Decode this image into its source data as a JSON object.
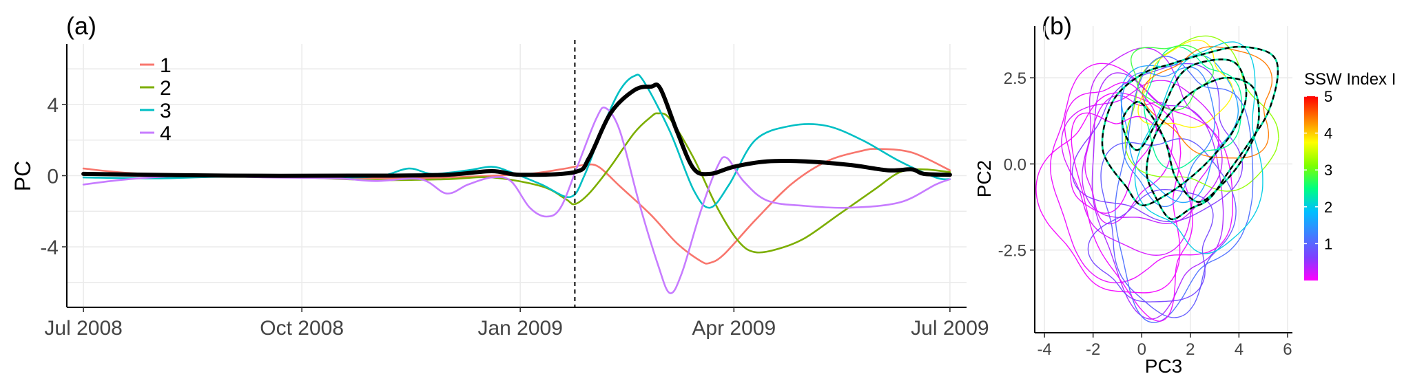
{
  "colors": {
    "series_1": "#F8766D",
    "series_2": "#7CAE00",
    "series_3": "#00BFC4",
    "series_4": "#C77CFF",
    "mean": "#000000",
    "event_marker": "#000000"
  },
  "chart_data": [
    {
      "type": "line",
      "panel_label": "(a)",
      "title": "",
      "xlabel": "",
      "ylabel": "PC",
      "x_type": "date",
      "xlim": [
        "2008-06-24",
        "2009-07-08"
      ],
      "ylim": [
        -7.4,
        7.4
      ],
      "xticks": [
        {
          "date": "2008-07-01",
          "label": "Jul 2008"
        },
        {
          "date": "2008-10-01",
          "label": "Oct 2008"
        },
        {
          "date": "2009-01-01",
          "label": "Jan 2009"
        },
        {
          "date": "2009-04-01",
          "label": "Apr 2009"
        },
        {
          "date": "2009-07-01",
          "label": "Jul 2009"
        }
      ],
      "yticks": [
        {
          "value": -4,
          "label": "-4"
        },
        {
          "value": 0,
          "label": "0"
        },
        {
          "value": 4,
          "label": "4"
        }
      ],
      "grid": true,
      "legend_position": "top-left",
      "event_line": {
        "date": "2009-01-24",
        "style": "dashed"
      },
      "series": [
        {
          "name": "1",
          "color_key": "series_1",
          "points": [
            [
              "2008-07-01",
              0.4
            ],
            [
              "2008-07-20",
              0.15
            ],
            [
              "2008-08-15",
              0.0
            ],
            [
              "2008-09-15",
              -0.05
            ],
            [
              "2008-10-15",
              -0.1
            ],
            [
              "2008-11-10",
              -0.15
            ],
            [
              "2008-12-01",
              -0.1
            ],
            [
              "2008-12-20",
              0.0
            ],
            [
              "2009-01-05",
              0.1
            ],
            [
              "2009-01-20",
              0.4
            ],
            [
              "2009-01-28",
              0.6
            ],
            [
              "2009-02-03",
              0.5
            ],
            [
              "2009-02-12",
              -0.6
            ],
            [
              "2009-02-25",
              -2.2
            ],
            [
              "2009-03-08",
              -3.8
            ],
            [
              "2009-03-18",
              -4.8
            ],
            [
              "2009-03-22",
              -4.9
            ],
            [
              "2009-03-28",
              -4.4
            ],
            [
              "2009-04-10",
              -2.5
            ],
            [
              "2009-04-25",
              -0.5
            ],
            [
              "2009-05-10",
              0.8
            ],
            [
              "2009-05-25",
              1.4
            ],
            [
              "2009-06-01",
              1.5
            ],
            [
              "2009-06-15",
              1.3
            ],
            [
              "2009-07-01",
              0.3
            ]
          ]
        },
        {
          "name": "2",
          "color_key": "series_2",
          "points": [
            [
              "2008-07-01",
              0.1
            ],
            [
              "2008-08-01",
              0.0
            ],
            [
              "2008-09-01",
              -0.05
            ],
            [
              "2008-10-01",
              -0.1
            ],
            [
              "2008-11-01",
              -0.25
            ],
            [
              "2008-12-01",
              -0.2
            ],
            [
              "2008-12-20",
              -0.1
            ],
            [
              "2009-01-10",
              -0.6
            ],
            [
              "2009-01-20",
              -1.3
            ],
            [
              "2009-01-24",
              -1.6
            ],
            [
              "2009-01-30",
              -1.0
            ],
            [
              "2009-02-08",
              0.5
            ],
            [
              "2009-02-18",
              2.4
            ],
            [
              "2009-02-25",
              3.3
            ],
            [
              "2009-02-28",
              3.5
            ],
            [
              "2009-03-05",
              3.2
            ],
            [
              "2009-03-15",
              1.0
            ],
            [
              "2009-03-25",
              -1.8
            ],
            [
              "2009-04-03",
              -3.7
            ],
            [
              "2009-04-10",
              -4.3
            ],
            [
              "2009-04-20",
              -4.1
            ],
            [
              "2009-05-01",
              -3.5
            ],
            [
              "2009-05-15",
              -2.2
            ],
            [
              "2009-05-30",
              -0.8
            ],
            [
              "2009-06-10",
              0.2
            ],
            [
              "2009-06-20",
              0.35
            ],
            [
              "2009-07-01",
              0.2
            ]
          ]
        },
        {
          "name": "3",
          "color_key": "series_3",
          "points": [
            [
              "2008-07-01",
              -0.1
            ],
            [
              "2008-08-01",
              -0.15
            ],
            [
              "2008-09-01",
              -0.05
            ],
            [
              "2008-10-01",
              -0.1
            ],
            [
              "2008-11-01",
              -0.05
            ],
            [
              "2008-11-15",
              0.4
            ],
            [
              "2008-11-25",
              0.1
            ],
            [
              "2008-12-10",
              0.3
            ],
            [
              "2008-12-20",
              0.5
            ],
            [
              "2008-12-28",
              0.2
            ],
            [
              "2009-01-10",
              -0.5
            ],
            [
              "2009-01-22",
              -1.2
            ],
            [
              "2009-01-28",
              0.0
            ],
            [
              "2009-02-05",
              2.8
            ],
            [
              "2009-02-12",
              4.8
            ],
            [
              "2009-02-18",
              5.6
            ],
            [
              "2009-02-22",
              5.3
            ],
            [
              "2009-03-05",
              2.5
            ],
            [
              "2009-03-15",
              -0.8
            ],
            [
              "2009-03-22",
              -1.8
            ],
            [
              "2009-03-30",
              -0.5
            ],
            [
              "2009-04-10",
              2.0
            ],
            [
              "2009-04-25",
              2.8
            ],
            [
              "2009-05-10",
              2.8
            ],
            [
              "2009-05-25",
              2.0
            ],
            [
              "2009-06-10",
              0.8
            ],
            [
              "2009-06-25",
              -0.1
            ],
            [
              "2009-07-01",
              -0.2
            ]
          ]
        },
        {
          "name": "4",
          "color_key": "series_4",
          "points": [
            [
              "2008-07-01",
              -0.5
            ],
            [
              "2008-07-20",
              -0.2
            ],
            [
              "2008-08-15",
              0.0
            ],
            [
              "2008-09-15",
              -0.1
            ],
            [
              "2008-10-15",
              -0.15
            ],
            [
              "2008-11-01",
              -0.3
            ],
            [
              "2008-11-20",
              -0.2
            ],
            [
              "2008-12-01",
              -1.0
            ],
            [
              "2008-12-10",
              -0.5
            ],
            [
              "2008-12-20",
              -0.1
            ],
            [
              "2008-12-28",
              -0.3
            ],
            [
              "2009-01-05",
              -1.8
            ],
            [
              "2009-01-12",
              -2.3
            ],
            [
              "2009-01-18",
              -1.8
            ],
            [
              "2009-01-25",
              0.5
            ],
            [
              "2009-02-02",
              3.2
            ],
            [
              "2009-02-06",
              3.8
            ],
            [
              "2009-02-12",
              2.5
            ],
            [
              "2009-02-20",
              -1.5
            ],
            [
              "2009-02-28",
              -5.0
            ],
            [
              "2009-03-05",
              -6.6
            ],
            [
              "2009-03-10",
              -5.5
            ],
            [
              "2009-03-18",
              -2.0
            ],
            [
              "2009-03-25",
              0.5
            ],
            [
              "2009-03-29",
              1.0
            ],
            [
              "2009-04-05",
              -0.3
            ],
            [
              "2009-04-15",
              -1.4
            ],
            [
              "2009-05-01",
              -1.7
            ],
            [
              "2009-05-20",
              -1.8
            ],
            [
              "2009-06-10",
              -1.5
            ],
            [
              "2009-06-25",
              -0.5
            ],
            [
              "2009-07-01",
              -0.2
            ]
          ]
        },
        {
          "name": "",
          "color_key": "mean",
          "line_weight": "bold",
          "points": [
            [
              "2008-07-01",
              0.1
            ],
            [
              "2008-09-01",
              0.0
            ],
            [
              "2008-11-01",
              0.0
            ],
            [
              "2008-12-01",
              0.05
            ],
            [
              "2008-12-20",
              0.25
            ],
            [
              "2009-01-01",
              0.05
            ],
            [
              "2009-01-24",
              0.2
            ],
            [
              "2009-01-30",
              1.0
            ],
            [
              "2009-02-08",
              3.5
            ],
            [
              "2009-02-18",
              4.8
            ],
            [
              "2009-02-25",
              5.0
            ],
            [
              "2009-03-01",
              4.9
            ],
            [
              "2009-03-08",
              2.5
            ],
            [
              "2009-03-15",
              0.4
            ],
            [
              "2009-03-22",
              0.1
            ],
            [
              "2009-04-01",
              0.5
            ],
            [
              "2009-04-15",
              0.8
            ],
            [
              "2009-05-01",
              0.8
            ],
            [
              "2009-05-20",
              0.6
            ],
            [
              "2009-06-05",
              0.3
            ],
            [
              "2009-06-15",
              0.35
            ],
            [
              "2009-06-20",
              0.1
            ],
            [
              "2009-07-01",
              0.05
            ]
          ]
        }
      ]
    },
    {
      "type": "line",
      "subtype": "phase-trajectory",
      "panel_label": "(b)",
      "title": "",
      "xlabel": "PC3",
      "ylabel": "PC2",
      "xlim": [
        -4.4,
        6.2
      ],
      "ylim": [
        -4.9,
        4.0
      ],
      "xticks": [
        -4,
        -2,
        0,
        2,
        4,
        6
      ],
      "yticks": [
        {
          "value": -2.5,
          "label": "-2.5"
        },
        {
          "value": 0.0,
          "label": "0.0"
        },
        {
          "value": 2.5,
          "label": "2.5"
        }
      ],
      "grid": true,
      "highlighted_trajectory_style": "black-dashed",
      "colorbar": {
        "title": "SSW Index I",
        "position": "right",
        "min": 0,
        "max": 5,
        "ticks": [
          1,
          2,
          3,
          4,
          5
        ],
        "gradient": [
          "#FF00FF",
          "#7F3FFF",
          "#3F7FFF",
          "#00BFFF",
          "#00FF80",
          "#80FF00",
          "#FFFF00",
          "#FF8000",
          "#FF0000"
        ]
      },
      "loops": [
        {
          "center": [
            0.0,
            0.0
          ],
          "rx": 3.0,
          "ry": 2.4,
          "rot": 10,
          "intensity": 0.2
        },
        {
          "center": [
            -0.2,
            -0.4
          ],
          "rx": 3.8,
          "ry": 2.8,
          "rot": -15,
          "intensity": 0.1
        },
        {
          "center": [
            0.5,
            -0.8
          ],
          "rx": 2.6,
          "ry": 3.3,
          "rot": 20,
          "intensity": 0.4
        },
        {
          "center": [
            -0.6,
            0.3
          ],
          "rx": 2.0,
          "ry": 1.5,
          "rot": 40,
          "intensity": 0.15
        },
        {
          "center": [
            0.8,
            0.5
          ],
          "rx": 3.2,
          "ry": 2.2,
          "rot": 5,
          "intensity": 0.6
        },
        {
          "center": [
            1.0,
            -1.6
          ],
          "rx": 2.6,
          "ry": 2.5,
          "rot": -30,
          "intensity": 0.9
        },
        {
          "center": [
            -1.0,
            -0.9
          ],
          "rx": 2.8,
          "ry": 2.9,
          "rot": 25,
          "intensity": 0.05
        },
        {
          "center": [
            1.5,
            1.2
          ],
          "rx": 2.3,
          "ry": 2.0,
          "rot": 15,
          "intensity": 1.6
        },
        {
          "center": [
            2.0,
            1.6
          ],
          "rx": 2.0,
          "ry": 1.6,
          "rot": 0,
          "intensity": 2.4
        },
        {
          "center": [
            2.4,
            1.3
          ],
          "rx": 3.0,
          "ry": 2.1,
          "rot": -10,
          "intensity": 3.2
        },
        {
          "center": [
            1.8,
            2.2
          ],
          "rx": 1.8,
          "ry": 1.2,
          "rot": 10,
          "intensity": 3.8
        },
        {
          "center": [
            3.0,
            1.8
          ],
          "rx": 2.5,
          "ry": 1.6,
          "rot": -5,
          "intensity": 4.4
        },
        {
          "center": [
            0.2,
            0.6
          ],
          "rx": 2.4,
          "ry": 2.8,
          "rot": 60,
          "intensity": 0.3
        },
        {
          "center": [
            1.6,
            -0.6
          ],
          "rx": 2.7,
          "ry": 3.6,
          "rot": -20,
          "intensity": 1.1
        },
        {
          "center": [
            -0.3,
            -1.2
          ],
          "rx": 2.0,
          "ry": 3.1,
          "rot": 30,
          "intensity": 0.08
        },
        {
          "center": [
            1.0,
            1.0
          ],
          "rx": 2.0,
          "ry": 1.8,
          "rot": 45,
          "intensity": 1.3
        },
        {
          "center": [
            2.6,
            0.4
          ],
          "rx": 2.4,
          "ry": 3.0,
          "rot": -15,
          "intensity": 2.0
        },
        {
          "center": [
            -1.4,
            0.6
          ],
          "rx": 1.6,
          "ry": 2.0,
          "rot": -40,
          "intensity": 0.1
        },
        {
          "center": [
            0.6,
            -2.4
          ],
          "rx": 2.4,
          "ry": 1.6,
          "rot": 10,
          "intensity": 0.7
        },
        {
          "center": [
            1.2,
            2.6
          ],
          "rx": 1.6,
          "ry": 0.9,
          "rot": 0,
          "intensity": 2.8
        }
      ],
      "highlighted_path": [
        [
          -0.6,
          -0.7
        ],
        [
          -1.6,
          0.4
        ],
        [
          -1.2,
          1.8
        ],
        [
          0.0,
          2.6
        ],
        [
          1.2,
          2.9
        ],
        [
          2.6,
          3.2
        ],
        [
          4.0,
          3.4
        ],
        [
          5.3,
          3.2
        ],
        [
          5.6,
          2.6
        ],
        [
          5.2,
          1.5
        ],
        [
          4.4,
          0.6
        ],
        [
          3.6,
          -0.2
        ],
        [
          2.8,
          -1.0
        ],
        [
          2.0,
          -1.3
        ],
        [
          1.2,
          -1.6
        ],
        [
          0.6,
          -1.0
        ],
        [
          0.2,
          -0.2
        ],
        [
          0.6,
          0.9
        ],
        [
          1.6,
          1.8
        ],
        [
          2.6,
          2.3
        ],
        [
          3.6,
          2.5
        ],
        [
          4.6,
          2.2
        ],
        [
          4.8,
          1.2
        ],
        [
          4.2,
          0.2
        ],
        [
          3.3,
          -0.6
        ],
        [
          2.3,
          -1.1
        ],
        [
          1.4,
          -0.4
        ],
        [
          1.0,
          0.6
        ],
        [
          0.4,
          1.4
        ],
        [
          -0.2,
          1.8
        ],
        [
          -0.8,
          1.2
        ],
        [
          -0.2,
          0.4
        ],
        [
          0.6,
          1.2
        ],
        [
          1.6,
          2.6
        ],
        [
          2.8,
          3.0
        ],
        [
          3.9,
          2.9
        ],
        [
          4.3,
          2.0
        ],
        [
          3.8,
          1.0
        ],
        [
          2.9,
          0.2
        ],
        [
          2.0,
          -0.4
        ],
        [
          1.0,
          -0.9
        ],
        [
          0.0,
          -1.2
        ],
        [
          -0.6,
          -0.7
        ]
      ]
    }
  ]
}
